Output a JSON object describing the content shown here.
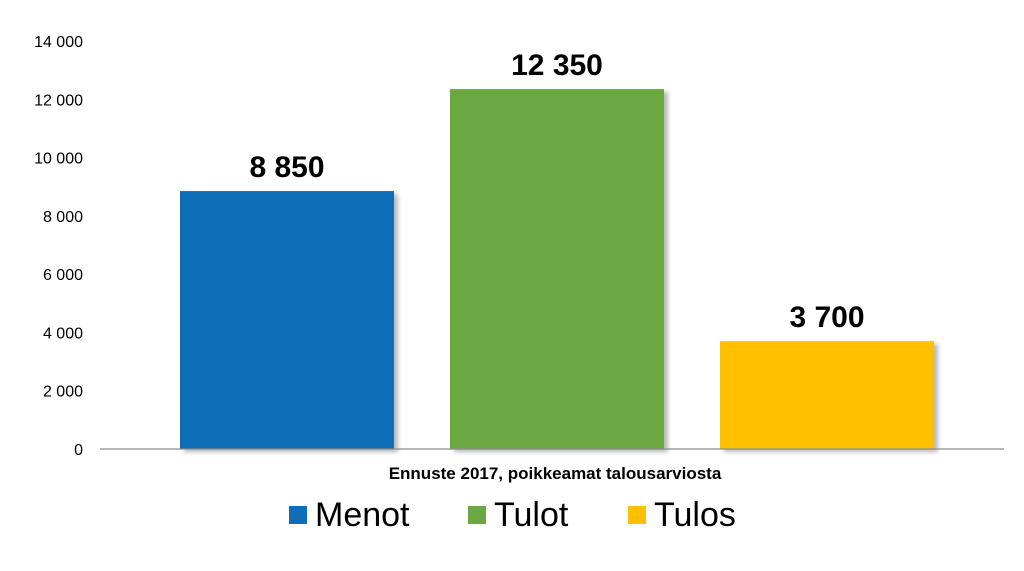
{
  "chart_data": {
    "type": "bar",
    "categories": [
      "Ennuste 2017, poikkeamat talousarviosta"
    ],
    "series": [
      {
        "name": "Menot",
        "values": [
          8850
        ],
        "color": "#0F6DB5",
        "label": "8 850"
      },
      {
        "name": "Tulot",
        "values": [
          12350
        ],
        "color": "#6BA843",
        "label": "12 350"
      },
      {
        "name": "Tulos",
        "values": [
          3700
        ],
        "color": "#FFC000",
        "label": "3 700"
      }
    ],
    "ylim": [
      0,
      14000
    ],
    "yticks": [
      0,
      2000,
      4000,
      6000,
      8000,
      10000,
      12000,
      14000
    ],
    "ytick_labels": [
      "0",
      "2 000",
      "4 000",
      "6 000",
      "8 000",
      "10 000",
      "12 000",
      "14 000"
    ],
    "grid": false,
    "legend_position": "bottom",
    "xlabel": "",
    "ylabel": "",
    "title": ""
  }
}
